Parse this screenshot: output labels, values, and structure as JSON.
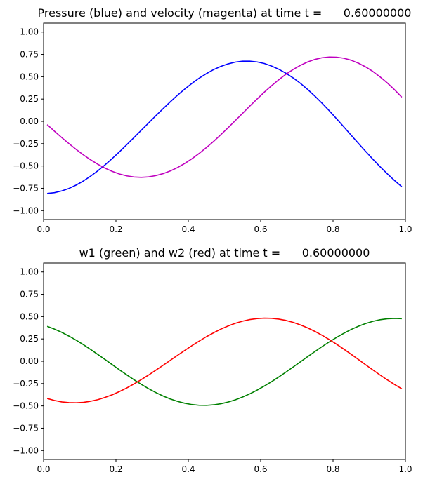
{
  "chart_data": [
    {
      "type": "line",
      "title": "Pressure (blue) and velocity (magenta) at time t =      0.60000000",
      "xlim": [
        0,
        1
      ],
      "ylim": [
        -1.1,
        1.1
      ],
      "xticks": [
        0,
        0.2,
        0.4,
        0.6,
        0.8,
        1.0
      ],
      "yticks": [
        -1.0,
        -0.75,
        -0.5,
        -0.25,
        0.0,
        0.25,
        0.5,
        0.75,
        1.0
      ],
      "xtick_labels": [
        "0.0",
        "0.2",
        "0.4",
        "0.6",
        "0.8",
        "1.0"
      ],
      "ytick_labels": [
        "−1.00",
        "−0.75",
        "−0.50",
        "−0.25",
        "0.00",
        "0.25",
        "0.50",
        "0.75",
        "1.00"
      ],
      "grid": false,
      "series": [
        {
          "color": "#0000ff",
          "x": [
            0.01,
            0.03,
            0.05,
            0.07,
            0.09,
            0.11,
            0.13,
            0.15,
            0.17,
            0.19,
            0.21,
            0.23,
            0.25,
            0.27,
            0.29,
            0.31,
            0.33,
            0.35,
            0.37,
            0.39,
            0.41,
            0.43,
            0.45,
            0.47,
            0.49,
            0.51,
            0.53,
            0.55,
            0.57,
            0.59,
            0.61,
            0.63,
            0.65,
            0.67,
            0.69,
            0.71,
            0.73,
            0.75,
            0.77,
            0.79,
            0.81,
            0.83,
            0.85,
            0.87,
            0.89,
            0.91,
            0.93,
            0.95,
            0.97,
            0.99
          ],
          "y": [
            -0.808,
            -0.799,
            -0.78,
            -0.752,
            -0.714,
            -0.668,
            -0.614,
            -0.554,
            -0.487,
            -0.415,
            -0.34,
            -0.261,
            -0.181,
            -0.1,
            -0.019,
            0.062,
            0.141,
            0.218,
            0.292,
            0.361,
            0.425,
            0.484,
            0.535,
            0.58,
            0.616,
            0.644,
            0.664,
            0.674,
            0.674,
            0.666,
            0.648,
            0.62,
            0.584,
            0.539,
            0.486,
            0.425,
            0.357,
            0.282,
            0.202,
            0.117,
            0.028,
            -0.063,
            -0.155,
            -0.246,
            -0.336,
            -0.424,
            -0.508,
            -0.588,
            -0.663,
            -0.733
          ]
        },
        {
          "color": "#bf00bf",
          "x": [
            0.01,
            0.03,
            0.05,
            0.07,
            0.09,
            0.11,
            0.13,
            0.15,
            0.17,
            0.19,
            0.21,
            0.23,
            0.25,
            0.27,
            0.29,
            0.31,
            0.33,
            0.35,
            0.37,
            0.39,
            0.41,
            0.43,
            0.45,
            0.47,
            0.49,
            0.51,
            0.53,
            0.55,
            0.57,
            0.59,
            0.61,
            0.63,
            0.65,
            0.67,
            0.69,
            0.71,
            0.73,
            0.75,
            0.77,
            0.79,
            0.81,
            0.83,
            0.85,
            0.87,
            0.89,
            0.91,
            0.93,
            0.95,
            0.97,
            0.99
          ],
          "y": [
            -0.037,
            -0.11,
            -0.181,
            -0.249,
            -0.314,
            -0.375,
            -0.431,
            -0.481,
            -0.525,
            -0.561,
            -0.59,
            -0.611,
            -0.623,
            -0.627,
            -0.622,
            -0.608,
            -0.586,
            -0.556,
            -0.518,
            -0.472,
            -0.419,
            -0.359,
            -0.294,
            -0.224,
            -0.149,
            -0.071,
            0.009,
            0.09,
            0.171,
            0.25,
            0.327,
            0.399,
            0.466,
            0.528,
            0.582,
            0.628,
            0.666,
            0.694,
            0.713,
            0.721,
            0.719,
            0.707,
            0.685,
            0.652,
            0.61,
            0.559,
            0.498,
            0.43,
            0.354,
            0.271
          ]
        }
      ]
    },
    {
      "type": "line",
      "title": "w1 (green) and w2 (red) at time t =      0.60000000",
      "xlim": [
        0,
        1
      ],
      "ylim": [
        -1.1,
        1.1
      ],
      "xticks": [
        0,
        0.2,
        0.4,
        0.6,
        0.8,
        1.0
      ],
      "yticks": [
        -1.0,
        -0.75,
        -0.5,
        -0.25,
        0.0,
        0.25,
        0.5,
        0.75,
        1.0
      ],
      "xtick_labels": [
        "0.0",
        "0.2",
        "0.4",
        "0.6",
        "0.8",
        "1.0"
      ],
      "ytick_labels": [
        "−1.00",
        "−0.75",
        "−0.50",
        "−0.25",
        "0.00",
        "0.25",
        "0.50",
        "0.75",
        "1.00"
      ],
      "grid": false,
      "series": [
        {
          "color": "#008000",
          "x": [
            0.01,
            0.03,
            0.05,
            0.07,
            0.09,
            0.11,
            0.13,
            0.15,
            0.17,
            0.19,
            0.21,
            0.23,
            0.25,
            0.27,
            0.29,
            0.31,
            0.33,
            0.35,
            0.37,
            0.39,
            0.41,
            0.43,
            0.45,
            0.47,
            0.49,
            0.51,
            0.53,
            0.55,
            0.57,
            0.59,
            0.61,
            0.63,
            0.65,
            0.67,
            0.69,
            0.71,
            0.73,
            0.75,
            0.77,
            0.79,
            0.81,
            0.83,
            0.85,
            0.87,
            0.89,
            0.91,
            0.93,
            0.95,
            0.97,
            0.99
          ],
          "y": [
            0.391,
            0.36,
            0.324,
            0.282,
            0.236,
            0.186,
            0.132,
            0.076,
            0.019,
            -0.039,
            -0.097,
            -0.153,
            -0.208,
            -0.259,
            -0.307,
            -0.35,
            -0.389,
            -0.422,
            -0.449,
            -0.47,
            -0.485,
            -0.493,
            -0.494,
            -0.488,
            -0.476,
            -0.457,
            -0.432,
            -0.401,
            -0.365,
            -0.324,
            -0.278,
            -0.229,
            -0.176,
            -0.121,
            -0.064,
            -0.006,
            0.052,
            0.109,
            0.165,
            0.218,
            0.268,
            0.314,
            0.356,
            0.392,
            0.422,
            0.447,
            0.465,
            0.476,
            0.48,
            0.477
          ]
        },
        {
          "color": "#ff0000",
          "x": [
            0.01,
            0.03,
            0.05,
            0.07,
            0.09,
            0.11,
            0.13,
            0.15,
            0.17,
            0.19,
            0.21,
            0.23,
            0.25,
            0.27,
            0.29,
            0.31,
            0.33,
            0.35,
            0.37,
            0.39,
            0.41,
            0.43,
            0.45,
            0.47,
            0.49,
            0.51,
            0.53,
            0.55,
            0.57,
            0.59,
            0.61,
            0.63,
            0.65,
            0.67,
            0.69,
            0.71,
            0.73,
            0.75,
            0.77,
            0.79,
            0.81,
            0.83,
            0.85,
            0.87,
            0.89,
            0.91,
            0.93,
            0.95,
            0.97,
            0.99
          ],
          "y": [
            -0.417,
            -0.439,
            -0.455,
            -0.463,
            -0.465,
            -0.46,
            -0.448,
            -0.43,
            -0.405,
            -0.375,
            -0.339,
            -0.299,
            -0.254,
            -0.206,
            -0.155,
            -0.101,
            -0.046,
            0.01,
            0.066,
            0.121,
            0.175,
            0.226,
            0.275,
            0.319,
            0.36,
            0.395,
            0.425,
            0.449,
            0.467,
            0.478,
            0.483,
            0.481,
            0.472,
            0.457,
            0.435,
            0.407,
            0.373,
            0.334,
            0.29,
            0.242,
            0.19,
            0.135,
            0.078,
            0.02,
            -0.039,
            -0.097,
            -0.154,
            -0.209,
            -0.261,
            -0.309
          ]
        }
      ]
    }
  ]
}
